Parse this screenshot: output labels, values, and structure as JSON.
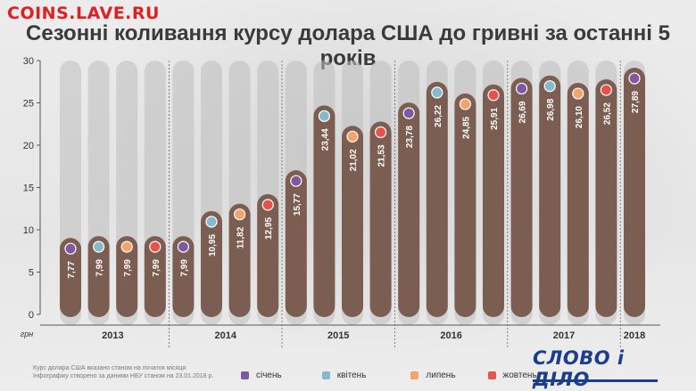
{
  "watermark": "COINS.LAVE.RU",
  "title": "Сезонні коливання курсу долара США до гривні за останні 5 років",
  "footer": {
    "line1": "Курс долара США  вказано станом  на початок місяця",
    "line2": "Інфографіку створено за даними НБУ станом на 23.01.2018 р."
  },
  "logo": "СЛОВО і ДІЛО",
  "colors": {
    "bar": "#7b5d52",
    "track": "#bdbdbd",
    "axis": "#555555",
    "січень": "#7e59a2",
    "квітень": "#87b9cd",
    "липень": "#f4a36a",
    "жовтень": "#e9514a"
  },
  "chart_data": {
    "type": "bar",
    "title": "Сезонні коливання курсу долара США до гривні за останні 5 років",
    "ylabel": "грн",
    "ylim": [
      0,
      30
    ],
    "yticks": [
      0,
      5,
      10,
      15,
      20,
      25,
      30
    ],
    "grid": false,
    "legend_position": "bottom",
    "legend": [
      "січень",
      "квітень",
      "липень",
      "жовтень"
    ],
    "groups": [
      {
        "label": "2013",
        "bars": [
          {
            "month": "січень",
            "value": 7.77,
            "label": "7,77"
          },
          {
            "month": "квітень",
            "value": 7.99,
            "label": "7,99"
          },
          {
            "month": "липень",
            "value": 7.99,
            "label": "7,99"
          },
          {
            "month": "жовтень",
            "value": 7.99,
            "label": "7,99"
          }
        ]
      },
      {
        "label": "2014",
        "bars": [
          {
            "month": "січень",
            "value": 7.99,
            "label": "7,99"
          },
          {
            "month": "квітень",
            "value": 10.95,
            "label": "10,95"
          },
          {
            "month": "липень",
            "value": 11.82,
            "label": "11,82"
          },
          {
            "month": "жовтень",
            "value": 12.95,
            "label": "12,95"
          }
        ]
      },
      {
        "label": "2015",
        "bars": [
          {
            "month": "січень",
            "value": 15.77,
            "label": "15,77"
          },
          {
            "month": "квітень",
            "value": 23.44,
            "label": "23,44"
          },
          {
            "month": "липень",
            "value": 21.02,
            "label": "21,02"
          },
          {
            "month": "жовтень",
            "value": 21.53,
            "label": "21,53"
          }
        ]
      },
      {
        "label": "2016",
        "bars": [
          {
            "month": "січень",
            "value": 23.78,
            "label": "23,78"
          },
          {
            "month": "квітень",
            "value": 26.22,
            "label": "26,22"
          },
          {
            "month": "липень",
            "value": 24.85,
            "label": "24,85"
          },
          {
            "month": "жовтень",
            "value": 25.91,
            "label": "25,91"
          }
        ]
      },
      {
        "label": "2017",
        "bars": [
          {
            "month": "січень",
            "value": 26.69,
            "label": "26,69"
          },
          {
            "month": "квітень",
            "value": 26.98,
            "label": "26,98"
          },
          {
            "month": "липень",
            "value": 26.1,
            "label": "26,10"
          },
          {
            "month": "жовтень",
            "value": 26.52,
            "label": "26,52"
          }
        ]
      },
      {
        "label": "2018",
        "bars": [
          {
            "month": "січень",
            "value": 27.89,
            "label": "27,89"
          }
        ]
      }
    ]
  }
}
